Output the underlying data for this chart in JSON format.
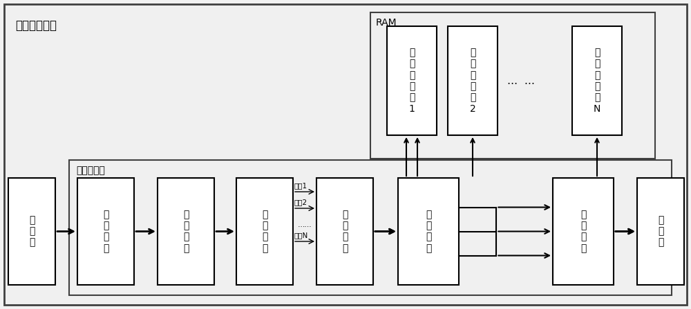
{
  "outer_title": "网络处理系统",
  "inner_title": "网络处理器",
  "ram_title": "RAM",
  "bg_light": "#f0f0f0",
  "bg_white": "#ffffff",
  "flow_labels_right": [
    "流量1",
    "流量2",
    "……",
    "流量N"
  ],
  "ram_dots": "…  …",
  "main_labels": [
    "入\n端\n口",
    "接\n收\n模\n块",
    "解\n析\n模\n块",
    "分\n配\n模\n块",
    "构\n造\n模\n块",
    "查\n找\n模\n块",
    "处\n理\n模\n块",
    "出\n端\n口"
  ],
  "ram_labels": [
    "虚\n拟\n内\n存\n库\n1",
    "虚\n拟\n内\n存\n库\n2",
    "虚\n拟\n内\n存\n库\nN"
  ]
}
